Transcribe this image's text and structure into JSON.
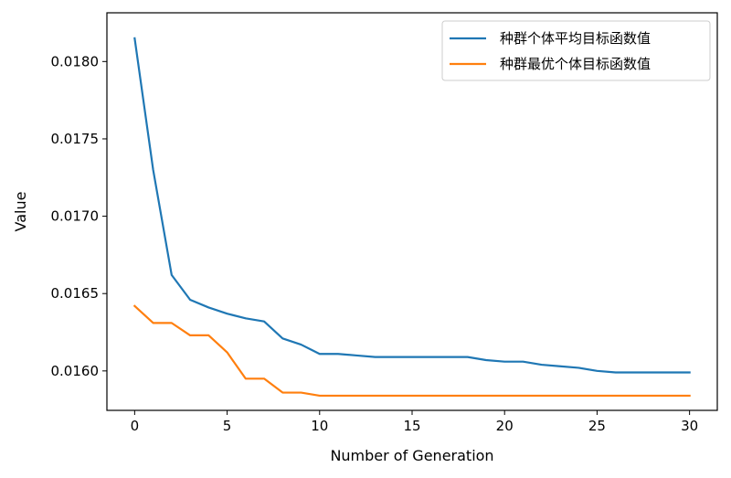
{
  "chart_data": {
    "type": "line",
    "title": "",
    "xlabel": "Number of Generation",
    "ylabel": "Value",
    "xlim": [
      -1.5,
      31.5
    ],
    "ylim": [
      0.015745,
      0.018315
    ],
    "xticks": [
      0,
      5,
      10,
      15,
      20,
      25,
      30
    ],
    "yticks": [
      0.016,
      0.0165,
      0.017,
      0.0175,
      0.018
    ],
    "xtick_labels": [
      "0",
      "5",
      "10",
      "15",
      "20",
      "25",
      "30"
    ],
    "ytick_labels": [
      "0.0160",
      "0.0165",
      "0.0170",
      "0.0175",
      "0.0180"
    ],
    "grid": false,
    "legend_position": "top-right",
    "x": [
      0,
      1,
      2,
      3,
      4,
      5,
      6,
      7,
      8,
      9,
      10,
      11,
      12,
      13,
      14,
      15,
      16,
      17,
      18,
      19,
      20,
      21,
      22,
      23,
      24,
      25,
      26,
      27,
      28,
      29,
      30
    ],
    "series": [
      {
        "name": "种群个体平均目标函数值",
        "color": "#1f77b4",
        "values": [
          0.01815,
          0.0173,
          0.01662,
          0.01646,
          0.01641,
          0.01637,
          0.01634,
          0.01632,
          0.01621,
          0.01617,
          0.01611,
          0.01611,
          0.0161,
          0.01609,
          0.01609,
          0.01609,
          0.01609,
          0.01609,
          0.01609,
          0.01607,
          0.01606,
          0.01606,
          0.01604,
          0.01603,
          0.01602,
          0.016,
          0.01599,
          0.01599,
          0.01599,
          0.01599,
          0.01599
        ]
      },
      {
        "name": "种群最优个体目标函数值",
        "color": "#ff7f0e",
        "values": [
          0.01642,
          0.01631,
          0.01631,
          0.01623,
          0.01623,
          0.01612,
          0.01595,
          0.01595,
          0.01586,
          0.01586,
          0.01584,
          0.01584,
          0.01584,
          0.01584,
          0.01584,
          0.01584,
          0.01584,
          0.01584,
          0.01584,
          0.01584,
          0.01584,
          0.01584,
          0.01584,
          0.01584,
          0.01584,
          0.01584,
          0.01584,
          0.01584,
          0.01584,
          0.01584,
          0.01584
        ]
      }
    ]
  }
}
